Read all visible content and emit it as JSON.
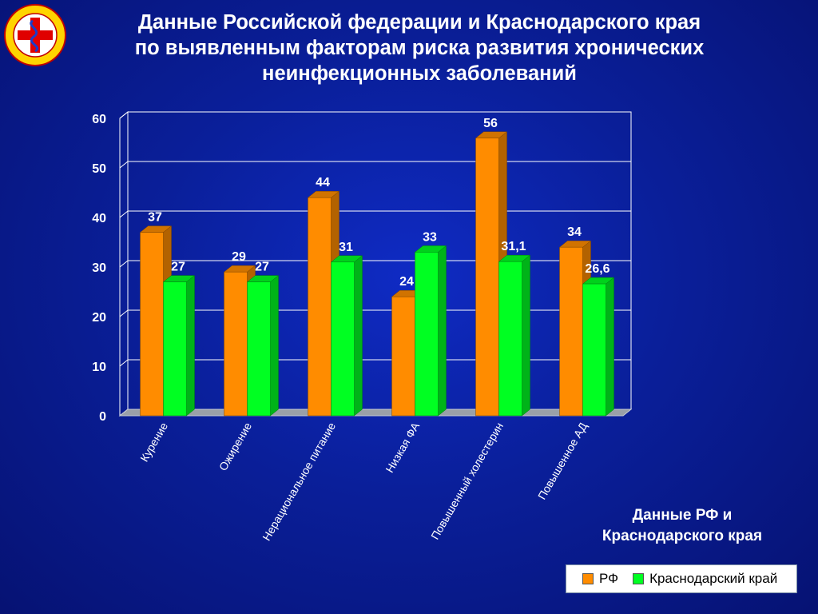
{
  "title": {
    "line1": "Данные Российской федерации и Краснодарского края",
    "line2": "по выявленным факторам риска развития хронических",
    "line3": "неинфекционных заболеваний"
  },
  "caption": {
    "line1": "Данные РФ и",
    "line2": "Краснодарского края"
  },
  "colors": {
    "rf": "#ff8c00",
    "region": "#00ff22",
    "background": "#0a1f9a",
    "text": "#ffffff"
  },
  "chart_data": {
    "type": "bar",
    "categories": [
      "Курение",
      "Ожирение",
      "Нерациональное питание",
      "Низкая ФА",
      "Повышенный холестерин",
      "Повышенное АД"
    ],
    "series": [
      {
        "name": "РФ",
        "values": [
          37,
          29,
          44,
          24,
          56,
          34
        ],
        "labels": [
          "37",
          "29",
          "44",
          "24",
          "56",
          "34"
        ]
      },
      {
        "name": "Краснодарский край",
        "values": [
          27,
          27,
          31,
          33,
          31.1,
          26.6
        ],
        "labels": [
          "27",
          "27",
          "31",
          "33",
          "31,1",
          "26,6"
        ]
      }
    ],
    "ylim": [
      0,
      60
    ],
    "yticks": [
      0,
      10,
      20,
      30,
      40,
      50,
      60
    ],
    "grid": true,
    "legend_position": "bottom-right",
    "style": "3d-column"
  }
}
